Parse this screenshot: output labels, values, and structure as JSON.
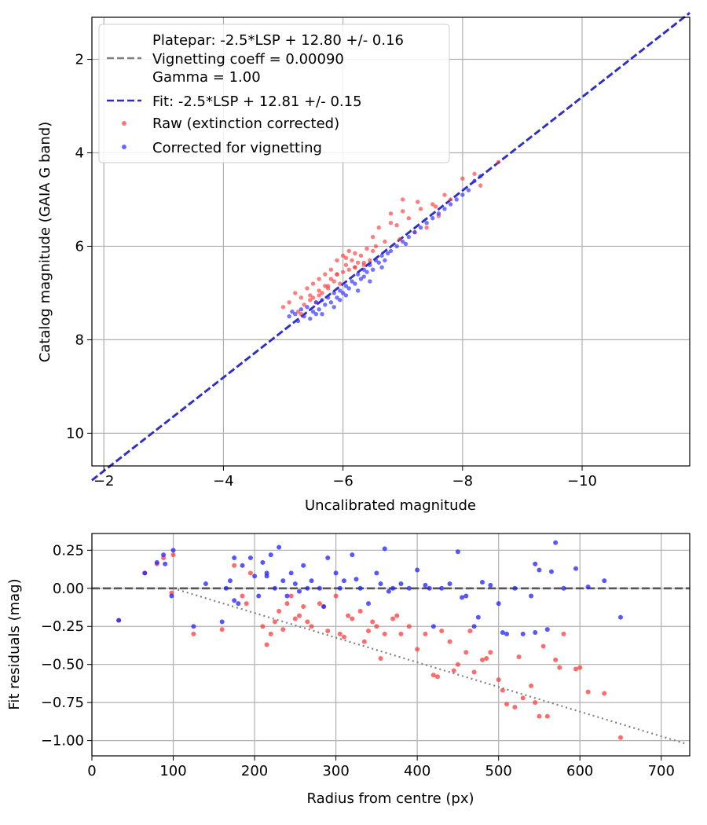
{
  "chart_data": [
    {
      "type": "scatter",
      "xlabel": "Uncalibrated magnitude",
      "ylabel": "Catalog magnitude (GAIA G band)",
      "xlim": [
        -1.8,
        -11.8
      ],
      "ylim": [
        10.7,
        1.1
      ],
      "x_ticks": [
        -2,
        -4,
        -6,
        -8,
        -10
      ],
      "x_tick_labels": [
        "−2",
        "−4",
        "−6",
        "−8",
        "−10"
      ],
      "y_ticks": [
        2,
        4,
        6,
        8,
        10
      ],
      "y_tick_labels": [
        "2",
        "4",
        "6",
        "8",
        "10"
      ],
      "grid": true,
      "legend_position": "top-left",
      "legend": {
        "platepar_lines": [
          "Platepar: -2.5*LSP + 12.80 +/- 0.16",
          "Vignetting coeff = 0.00090",
          "Gamma = 1.00"
        ],
        "fit_label": "Fit: -2.5*LSP + 12.81 +/- 0.15",
        "raw_label": "Raw (extinction corrected)",
        "corrected_label": "Corrected for vignetting"
      },
      "lines": [
        {
          "name": "Platepar",
          "style": "dashed",
          "color": "#808080",
          "intercept": 12.8
        },
        {
          "name": "Fit",
          "style": "dashed",
          "color": "#2b2bd6",
          "intercept": 12.81
        }
      ],
      "series": [
        {
          "name": "Raw (extinction corrected)",
          "color": "#ff3b3b",
          "x": [
            -5.0,
            -5.1,
            -5.2,
            -5.25,
            -5.3,
            -5.35,
            -5.4,
            -5.45,
            -5.5,
            -5.5,
            -5.55,
            -5.6,
            -5.6,
            -5.65,
            -5.7,
            -5.7,
            -5.75,
            -5.8,
            -5.8,
            -5.85,
            -5.9,
            -5.9,
            -5.95,
            -6.0,
            -6.0,
            -6.05,
            -6.1,
            -6.1,
            -6.15,
            -6.2,
            -6.2,
            -6.25,
            -6.3,
            -6.35,
            -6.4,
            -6.45,
            -6.5,
            -6.5,
            -6.55,
            -6.6,
            -6.7,
            -6.8,
            -6.9,
            -7.0,
            -7.1,
            -7.2,
            -7.3,
            -7.5,
            -7.6,
            -7.7,
            -7.8,
            -8.0,
            -8.2,
            -8.3,
            -8.6,
            -5.3,
            -5.6,
            -5.9,
            -6.2,
            -6.8,
            -7.0,
            -7.4,
            -5.45,
            -5.75,
            -6.05,
            -6.35,
            -6.95,
            -7.25,
            -7.55
          ],
          "y": [
            7.3,
            7.2,
            7.0,
            7.4,
            7.1,
            7.25,
            6.9,
            7.05,
            7.1,
            6.8,
            7.2,
            6.95,
            6.7,
            7.0,
            6.85,
            6.6,
            6.9,
            6.7,
            6.5,
            6.75,
            6.6,
            6.3,
            6.8,
            6.55,
            6.2,
            6.4,
            6.5,
            6.1,
            6.3,
            6.45,
            6.15,
            6.35,
            6.2,
            6.4,
            6.05,
            6.3,
            6.1,
            5.8,
            6.0,
            5.6,
            5.9,
            5.3,
            5.55,
            5.0,
            5.4,
            5.7,
            5.2,
            5.1,
            5.35,
            4.9,
            5.0,
            4.55,
            4.45,
            4.7,
            4.2,
            7.45,
            7.05,
            6.6,
            6.45,
            5.5,
            5.25,
            5.6,
            7.15,
            6.85,
            6.25,
            6.35,
            5.85,
            5.05,
            5.15
          ]
        },
        {
          "name": "Corrected for vignetting",
          "color": "#2a2aff",
          "x": [
            -5.1,
            -5.15,
            -5.2,
            -5.3,
            -5.35,
            -5.4,
            -5.5,
            -5.55,
            -5.6,
            -5.65,
            -5.7,
            -5.75,
            -5.8,
            -5.85,
            -5.9,
            -5.95,
            -6.0,
            -6.05,
            -6.1,
            -6.15,
            -6.2,
            -6.25,
            -6.3,
            -6.35,
            -6.4,
            -6.45,
            -6.5,
            -6.55,
            -6.6,
            -6.65,
            -6.7,
            -6.8,
            -6.9,
            -7.0,
            -7.1,
            -7.2,
            -7.3,
            -7.4,
            -7.5,
            -7.6,
            -7.7,
            -7.8,
            -7.9,
            -8.0,
            -8.1,
            -8.2,
            -8.3,
            -5.45,
            -5.65,
            -5.85,
            -6.05,
            -6.25,
            -6.45,
            -6.65,
            -5.25,
            -5.55,
            -5.95,
            -6.35,
            -6.75,
            -7.05
          ],
          "y": [
            7.5,
            7.4,
            7.45,
            7.35,
            7.5,
            7.3,
            7.4,
            7.2,
            7.35,
            7.15,
            7.25,
            7.1,
            7.2,
            7.0,
            7.1,
            6.95,
            7.0,
            6.85,
            6.9,
            6.75,
            6.8,
            6.6,
            6.7,
            6.5,
            6.55,
            6.4,
            6.5,
            6.3,
            6.35,
            6.2,
            6.3,
            6.1,
            6.0,
            5.9,
            5.8,
            5.7,
            5.6,
            5.5,
            5.4,
            5.3,
            5.2,
            5.1,
            5.0,
            4.9,
            4.8,
            4.6,
            4.5,
            7.55,
            7.45,
            7.3,
            7.05,
            6.95,
            6.75,
            6.45,
            7.6,
            7.45,
            7.15,
            6.65,
            6.15,
            5.95
          ]
        }
      ]
    },
    {
      "type": "scatter",
      "xlabel": "Radius from centre (px)",
      "ylabel": "Fit residuals (mag)",
      "xlim": [
        0,
        735
      ],
      "ylim": [
        -1.1,
        0.36
      ],
      "x_ticks": [
        0,
        100,
        200,
        300,
        400,
        500,
        600,
        700
      ],
      "x_tick_labels": [
        "0",
        "100",
        "200",
        "300",
        "400",
        "500",
        "600",
        "700"
      ],
      "y_ticks": [
        0.25,
        0.0,
        -0.25,
        -0.5,
        -0.75,
        -1.0
      ],
      "y_tick_labels": [
        "0.25",
        "0.00",
        "−0.25",
        "−0.50",
        "−0.75",
        "−1.00"
      ],
      "grid": true,
      "reference_lines": [
        {
          "name": "zero",
          "style": "dashed",
          "color": "#555555",
          "y": 0.0
        },
        {
          "name": "vignetting model",
          "style": "dotted",
          "color": "#808080",
          "x": [
            100,
            730
          ],
          "y": [
            0.0,
            -1.02
          ]
        }
      ],
      "series": [
        {
          "name": "Raw",
          "color": "#ff3b3b",
          "x": [
            33,
            65,
            80,
            88,
            98,
            100,
            125,
            160,
            175,
            185,
            195,
            210,
            215,
            220,
            225,
            230,
            240,
            250,
            255,
            260,
            270,
            280,
            290,
            300,
            305,
            310,
            320,
            330,
            340,
            350,
            355,
            360,
            370,
            380,
            390,
            400,
            410,
            420,
            430,
            440,
            450,
            460,
            470,
            480,
            490,
            500,
            505,
            510,
            520,
            530,
            540,
            545,
            550,
            560,
            570,
            575,
            580,
            600,
            610,
            630,
            650,
            190,
            245,
            265,
            285,
            335,
            345,
            375,
            425,
            445,
            465,
            485,
            525,
            555,
            595,
            235,
            315
          ],
          "y": [
            -0.21,
            0.1,
            0.16,
            0.2,
            -0.03,
            0.22,
            -0.3,
            -0.27,
            0.15,
            -0.05,
            0.1,
            -0.25,
            -0.37,
            -0.3,
            -0.22,
            -0.15,
            -0.1,
            -0.2,
            -0.18,
            -0.12,
            -0.25,
            -0.1,
            -0.28,
            -0.05,
            -0.3,
            -0.32,
            -0.2,
            -0.15,
            -0.28,
            -0.25,
            -0.46,
            -0.3,
            -0.2,
            -0.3,
            -0.25,
            -0.4,
            -0.3,
            -0.57,
            -0.28,
            -0.35,
            -0.5,
            -0.42,
            -0.55,
            -0.47,
            -0.42,
            -0.6,
            -0.67,
            -0.76,
            -0.78,
            -0.72,
            -0.64,
            -0.75,
            -0.84,
            -0.84,
            -0.47,
            -0.52,
            -0.3,
            -0.52,
            -0.68,
            -0.69,
            -0.98,
            -0.1,
            -0.05,
            -0.22,
            -0.12,
            -0.35,
            -0.22,
            -0.18,
            -0.58,
            -0.54,
            -0.28,
            -0.46,
            -0.45,
            -0.38,
            -0.53,
            -0.27,
            -0.18
          ]
        },
        {
          "name": "Corrected",
          "color": "#1f1fff",
          "x": [
            33,
            65,
            80,
            88,
            90,
            98,
            100,
            125,
            140,
            160,
            165,
            170,
            175,
            180,
            185,
            195,
            200,
            205,
            210,
            215,
            220,
            225,
            230,
            235,
            240,
            245,
            250,
            255,
            260,
            265,
            270,
            280,
            290,
            300,
            305,
            310,
            320,
            330,
            340,
            350,
            355,
            360,
            370,
            380,
            390,
            400,
            410,
            420,
            430,
            440,
            450,
            460,
            470,
            480,
            490,
            500,
            510,
            520,
            530,
            540,
            545,
            550,
            560,
            570,
            580,
            595,
            610,
            630,
            650,
            175,
            215,
            285,
            325,
            365,
            415,
            455,
            475,
            505,
            545,
            565
          ],
          "y": [
            -0.21,
            0.1,
            0.17,
            0.22,
            0.16,
            -0.05,
            0.25,
            -0.25,
            0.03,
            -0.22,
            0.0,
            0.05,
            0.2,
            -0.1,
            0.15,
            0.2,
            0.08,
            -0.05,
            0.17,
            0.1,
            0.22,
            0.0,
            0.27,
            0.05,
            -0.05,
            0.1,
            0.03,
            -0.02,
            0.15,
            0.0,
            0.05,
            0.0,
            0.2,
            0.1,
            0.0,
            0.05,
            0.22,
            0.0,
            -0.1,
            0.1,
            0.03,
            0.26,
            0.0,
            0.03,
            0.0,
            0.12,
            0.02,
            -0.25,
            0.0,
            0.03,
            0.24,
            -0.05,
            -0.25,
            0.04,
            0.02,
            -0.1,
            -0.3,
            0.0,
            -0.3,
            -0.05,
            0.16,
            0.12,
            -0.27,
            0.3,
            0.0,
            0.13,
            0.01,
            0.05,
            -0.19,
            -0.08,
            0.08,
            -0.12,
            0.06,
            -0.02,
            0.0,
            -0.06,
            -0.19,
            -0.29,
            -0.29,
            0.11
          ]
        }
      ]
    }
  ]
}
